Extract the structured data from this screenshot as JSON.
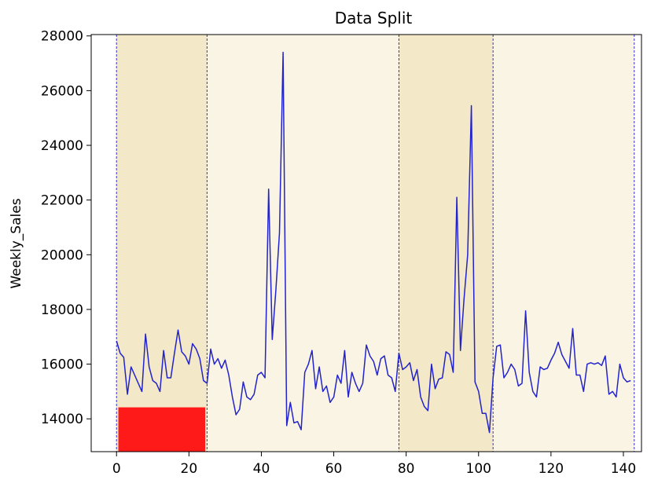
{
  "chart_data": {
    "type": "line",
    "title": "Data Split",
    "xlabel": "",
    "ylabel": "Weekly_Sales",
    "xlim": [
      -7,
      145
    ],
    "ylim": [
      12800,
      28050
    ],
    "grid": false,
    "legend": "none",
    "x_ticks": [
      0,
      20,
      40,
      60,
      80,
      100,
      120,
      140
    ],
    "y_ticks": [
      14000,
      16000,
      18000,
      20000,
      22000,
      24000,
      26000,
      28000
    ],
    "split_lines": [
      0,
      25,
      78,
      104,
      143
    ],
    "shaded_regions": [
      {
        "x0": 0,
        "x1": 25,
        "color": "#f3e9c8"
      },
      {
        "x0": 25,
        "x1": 78,
        "color": "#f9f4e4"
      },
      {
        "x0": 78,
        "x1": 104,
        "color": "#f3e9c8"
      },
      {
        "x0": 104,
        "x1": 143,
        "color": "#f9f4e4"
      }
    ],
    "red_block": {
      "x0": 0.5,
      "x1": 24.5,
      "y0": 12800,
      "y1": 14420,
      "color": "#ff1a1a"
    },
    "line_color": "#2323cc",
    "series": [
      {
        "values": [
          [
            0,
            16850
          ],
          [
            1,
            16400
          ],
          [
            2,
            16250
          ],
          [
            3,
            14900
          ],
          [
            4,
            15900
          ],
          [
            5,
            15600
          ],
          [
            6,
            15300
          ],
          [
            7,
            15000
          ],
          [
            8,
            17100
          ],
          [
            9,
            15900
          ],
          [
            10,
            15400
          ],
          [
            11,
            15300
          ],
          [
            12,
            15000
          ],
          [
            13,
            16500
          ],
          [
            14,
            15500
          ],
          [
            15,
            15500
          ],
          [
            16,
            16400
          ],
          [
            17,
            17250
          ],
          [
            18,
            16450
          ],
          [
            19,
            16300
          ],
          [
            20,
            16000
          ],
          [
            21,
            16750
          ],
          [
            22,
            16550
          ],
          [
            23,
            16200
          ],
          [
            24,
            15400
          ],
          [
            25,
            15300
          ],
          [
            26,
            16550
          ],
          [
            27,
            16000
          ],
          [
            28,
            16200
          ],
          [
            29,
            15850
          ],
          [
            30,
            16150
          ],
          [
            31,
            15600
          ],
          [
            32,
            14800
          ],
          [
            33,
            14150
          ],
          [
            34,
            14350
          ],
          [
            35,
            15350
          ],
          [
            36,
            14800
          ],
          [
            37,
            14700
          ],
          [
            38,
            14900
          ],
          [
            39,
            15600
          ],
          [
            40,
            15700
          ],
          [
            41,
            15500
          ],
          [
            42,
            22400
          ],
          [
            43,
            16900
          ],
          [
            44,
            18700
          ],
          [
            45,
            20800
          ],
          [
            46,
            27400
          ],
          [
            47,
            13750
          ],
          [
            48,
            14600
          ],
          [
            49,
            13850
          ],
          [
            50,
            13900
          ],
          [
            51,
            13600
          ],
          [
            52,
            15700
          ],
          [
            53,
            16000
          ],
          [
            54,
            16500
          ],
          [
            55,
            15100
          ],
          [
            56,
            15900
          ],
          [
            57,
            15000
          ],
          [
            58,
            15200
          ],
          [
            59,
            14600
          ],
          [
            60,
            14800
          ],
          [
            61,
            15600
          ],
          [
            62,
            15300
          ],
          [
            63,
            16500
          ],
          [
            64,
            14800
          ],
          [
            65,
            15700
          ],
          [
            66,
            15300
          ],
          [
            67,
            15000
          ],
          [
            68,
            15300
          ],
          [
            69,
            16700
          ],
          [
            70,
            16300
          ],
          [
            71,
            16100
          ],
          [
            72,
            15600
          ],
          [
            73,
            16200
          ],
          [
            74,
            16300
          ],
          [
            75,
            15600
          ],
          [
            76,
            15500
          ],
          [
            77,
            15000
          ],
          [
            78,
            16400
          ],
          [
            79,
            15800
          ],
          [
            80,
            15900
          ],
          [
            81,
            16050
          ],
          [
            82,
            15400
          ],
          [
            83,
            15800
          ],
          [
            84,
            14800
          ],
          [
            85,
            14450
          ],
          [
            86,
            14300
          ],
          [
            87,
            16000
          ],
          [
            88,
            15100
          ],
          [
            89,
            15450
          ],
          [
            90,
            15500
          ],
          [
            91,
            16450
          ],
          [
            92,
            16350
          ],
          [
            93,
            15700
          ],
          [
            94,
            22100
          ],
          [
            95,
            16500
          ],
          [
            96,
            18400
          ],
          [
            97,
            20000
          ],
          [
            98,
            25450
          ],
          [
            99,
            15350
          ],
          [
            100,
            15000
          ],
          [
            101,
            14200
          ],
          [
            102,
            14200
          ],
          [
            103,
            13500
          ],
          [
            104,
            15500
          ],
          [
            105,
            16650
          ],
          [
            106,
            16700
          ],
          [
            107,
            15500
          ],
          [
            108,
            15700
          ],
          [
            109,
            16000
          ],
          [
            110,
            15800
          ],
          [
            111,
            15200
          ],
          [
            112,
            15300
          ],
          [
            113,
            17950
          ],
          [
            114,
            15700
          ],
          [
            115,
            15000
          ],
          [
            116,
            14800
          ],
          [
            117,
            15900
          ],
          [
            118,
            15800
          ],
          [
            119,
            15850
          ],
          [
            120,
            16150
          ],
          [
            121,
            16400
          ],
          [
            122,
            16800
          ],
          [
            123,
            16350
          ],
          [
            124,
            16100
          ],
          [
            125,
            15850
          ],
          [
            126,
            17300
          ],
          [
            127,
            15600
          ],
          [
            128,
            15600
          ],
          [
            129,
            15000
          ],
          [
            130,
            16000
          ],
          [
            131,
            16050
          ],
          [
            132,
            16000
          ],
          [
            133,
            16050
          ],
          [
            134,
            15950
          ],
          [
            135,
            16300
          ],
          [
            136,
            14900
          ],
          [
            137,
            15000
          ],
          [
            138,
            14800
          ],
          [
            139,
            16000
          ],
          [
            140,
            15500
          ],
          [
            141,
            15350
          ],
          [
            142,
            15400
          ]
        ]
      }
    ]
  }
}
